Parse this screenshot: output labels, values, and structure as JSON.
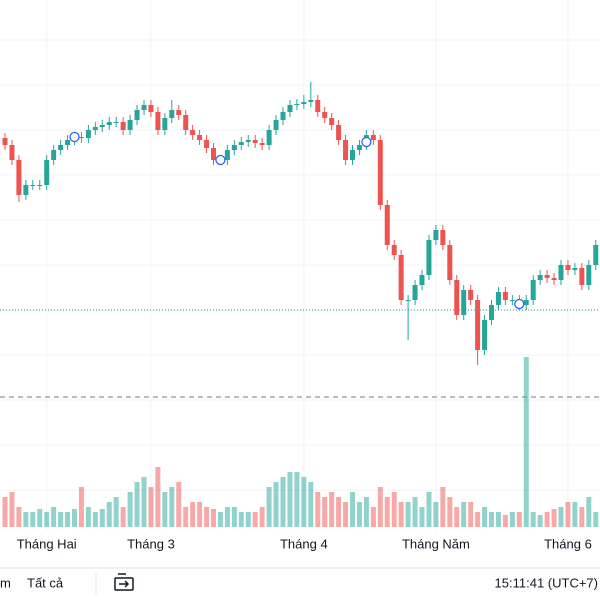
{
  "chart_data": {
    "type": "candlestick",
    "open": [
      262,
      255,
      240,
      205,
      215,
      215,
      215,
      240,
      250,
      255,
      260,
      263,
      262,
      270,
      273,
      275,
      278,
      278,
      270,
      280,
      290,
      295,
      288,
      270,
      282,
      290,
      285,
      270,
      265,
      260,
      252,
      240,
      240,
      250,
      255,
      258,
      260,
      257,
      255,
      270,
      280,
      288,
      295,
      296,
      298,
      300,
      288,
      282,
      275,
      260,
      240,
      250,
      255,
      265,
      260,
      195,
      155,
      145,
      100,
      100,
      115,
      125,
      160,
      170,
      155,
      120,
      85,
      110,
      100,
      50,
      80,
      95,
      108,
      100,
      100,
      95,
      100,
      120,
      125,
      122,
      120,
      135,
      130,
      132,
      115,
      135
    ],
    "high": [
      267,
      260,
      245,
      220,
      220,
      220,
      245,
      255,
      260,
      265,
      268,
      268,
      275,
      278,
      280,
      283,
      283,
      283,
      285,
      295,
      300,
      300,
      293,
      287,
      300,
      295,
      290,
      275,
      270,
      265,
      257,
      245,
      255,
      260,
      263,
      265,
      265,
      262,
      275,
      285,
      293,
      300,
      301,
      305,
      318,
      305,
      293,
      287,
      280,
      265,
      255,
      260,
      270,
      270,
      265,
      200,
      160,
      150,
      105,
      120,
      130,
      165,
      175,
      175,
      160,
      125,
      115,
      115,
      105,
      85,
      100,
      113,
      113,
      105,
      105,
      105,
      125,
      130,
      130,
      127,
      140,
      140,
      137,
      137,
      140,
      160
    ],
    "low": [
      250,
      235,
      198,
      200,
      210,
      210,
      210,
      235,
      245,
      250,
      255,
      257,
      257,
      265,
      268,
      270,
      273,
      265,
      265,
      275,
      285,
      283,
      265,
      265,
      277,
      280,
      265,
      260,
      255,
      247,
      235,
      235,
      235,
      245,
      250,
      253,
      252,
      250,
      250,
      265,
      275,
      283,
      290,
      291,
      293,
      283,
      277,
      270,
      255,
      235,
      235,
      245,
      250,
      255,
      190,
      150,
      140,
      95,
      60,
      95,
      110,
      120,
      155,
      150,
      115,
      80,
      80,
      95,
      35,
      45,
      75,
      90,
      95,
      95,
      90,
      90,
      95,
      115,
      117,
      115,
      115,
      125,
      125,
      110,
      110,
      130
    ],
    "close": [
      255,
      240,
      205,
      215,
      215,
      215,
      240,
      250,
      255,
      260,
      263,
      262,
      270,
      273,
      275,
      278,
      278,
      270,
      280,
      290,
      295,
      288,
      270,
      282,
      290,
      285,
      270,
      265,
      260,
      252,
      240,
      240,
      250,
      255,
      258,
      260,
      257,
      255,
      270,
      280,
      288,
      295,
      296,
      298,
      300,
      288,
      282,
      275,
      260,
      240,
      250,
      255,
      265,
      260,
      195,
      155,
      145,
      100,
      100,
      115,
      125,
      160,
      170,
      155,
      120,
      85,
      110,
      100,
      50,
      80,
      95,
      108,
      100,
      100,
      95,
      100,
      120,
      125,
      122,
      120,
      135,
      130,
      132,
      115,
      135,
      155
    ],
    "volume": [
      30,
      35,
      20,
      15,
      15,
      18,
      15,
      20,
      15,
      15,
      18,
      40,
      20,
      15,
      18,
      25,
      30,
      20,
      35,
      45,
      50,
      40,
      60,
      35,
      40,
      45,
      20,
      25,
      25,
      20,
      18,
      15,
      20,
      20,
      15,
      15,
      15,
      20,
      40,
      45,
      50,
      55,
      55,
      50,
      45,
      35,
      30,
      35,
      30,
      25,
      35,
      25,
      30,
      20,
      40,
      30,
      35,
      25,
      25,
      30,
      20,
      35,
      25,
      40,
      30,
      20,
      25,
      25,
      15,
      20,
      15,
      15,
      12,
      15,
      15,
      170,
      15,
      12,
      15,
      18,
      20,
      25,
      25,
      20,
      30,
      15
    ],
    "up_color": "#26a69a",
    "down_color": "#ef5350",
    "ylim": [
      0,
      400
    ],
    "volume_lim": [
      0,
      200
    ],
    "price_line": 90,
    "dashed_line": 3,
    "markers": [
      {
        "index": 10,
        "value": 263
      },
      {
        "index": 31,
        "value": 240
      },
      {
        "index": 52,
        "value": 258
      },
      {
        "index": 74,
        "value": 96
      }
    ],
    "x_axis_labels": [
      {
        "index": 6,
        "label": "Tháng Hai"
      },
      {
        "index": 21,
        "label": "Tháng 3"
      },
      {
        "index": 43,
        "label": "Tháng 4"
      },
      {
        "index": 62,
        "label": "Tháng Năm"
      },
      {
        "index": 81,
        "label": "Tháng 6"
      }
    ]
  },
  "toolbar": {
    "range": "m",
    "all": "Tất cả",
    "clock": "15:11:41 (UTC+7)"
  }
}
